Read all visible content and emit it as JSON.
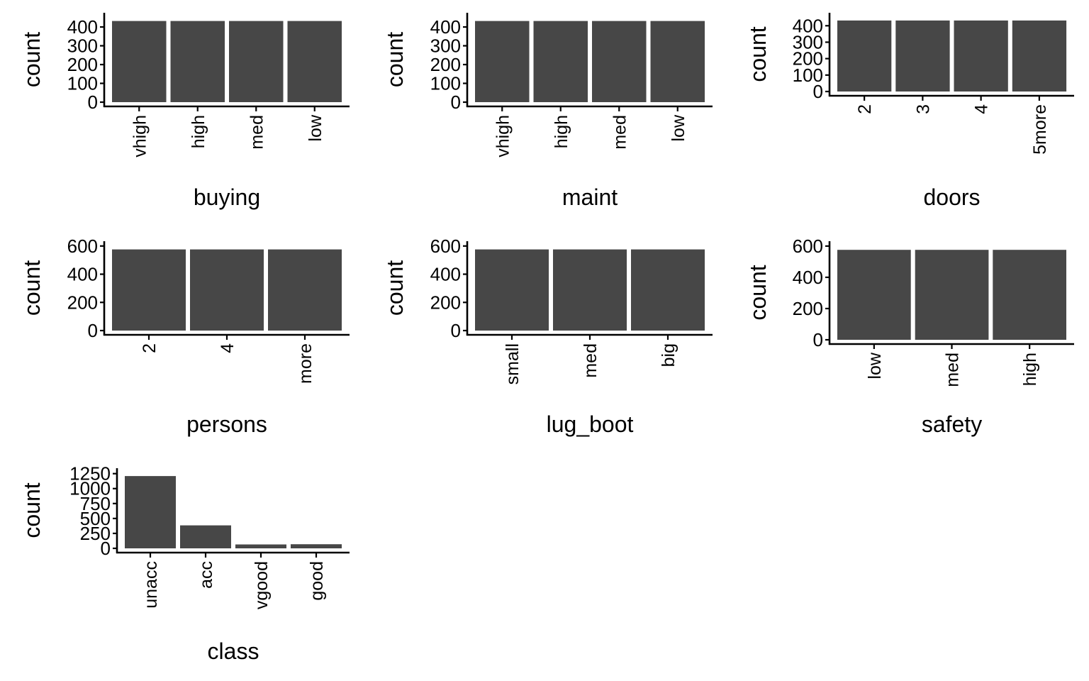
{
  "bar_color": "#474747",
  "ylabel": "count",
  "chart_data": [
    {
      "type": "bar",
      "xlabel": "buying",
      "ylabel": "count",
      "categories": [
        "vhigh",
        "high",
        "med",
        "low"
      ],
      "values": [
        432,
        432,
        432,
        432
      ],
      "yticks": [
        0,
        100,
        200,
        300,
        400
      ],
      "ylim": [
        0,
        453
      ]
    },
    {
      "type": "bar",
      "xlabel": "maint",
      "ylabel": "count",
      "categories": [
        "vhigh",
        "high",
        "med",
        "low"
      ],
      "values": [
        432,
        432,
        432,
        432
      ],
      "yticks": [
        0,
        100,
        200,
        300,
        400
      ],
      "ylim": [
        0,
        453
      ]
    },
    {
      "type": "bar",
      "xlabel": "doors",
      "ylabel": "count",
      "categories": [
        "2",
        "3",
        "4",
        "5more"
      ],
      "values": [
        432,
        432,
        432,
        432
      ],
      "yticks": [
        0,
        100,
        200,
        300,
        400
      ],
      "ylim": [
        0,
        453
      ]
    },
    {
      "type": "bar",
      "xlabel": "persons",
      "ylabel": "count",
      "categories": [
        "2",
        "4",
        "more"
      ],
      "values": [
        576,
        576,
        576
      ],
      "yticks": [
        0,
        200,
        400,
        600
      ],
      "ylim": [
        0,
        604
      ]
    },
    {
      "type": "bar",
      "xlabel": "lug_boot",
      "ylabel": "count",
      "categories": [
        "small",
        "med",
        "big"
      ],
      "values": [
        576,
        576,
        576
      ],
      "yticks": [
        0,
        200,
        400,
        600
      ],
      "ylim": [
        0,
        604
      ]
    },
    {
      "type": "bar",
      "xlabel": "safety",
      "ylabel": "count",
      "categories": [
        "low",
        "med",
        "high"
      ],
      "values": [
        576,
        576,
        576
      ],
      "yticks": [
        0,
        200,
        400,
        600
      ],
      "ylim": [
        0,
        604
      ]
    },
    {
      "type": "bar",
      "xlabel": "class",
      "ylabel": "count",
      "categories": [
        "unacc",
        "acc",
        "vgood",
        "good"
      ],
      "values": [
        1210,
        384,
        65,
        69
      ],
      "yticks": [
        0,
        250,
        500,
        750,
        1000,
        1250
      ],
      "ylim": [
        0,
        1270
      ]
    }
  ]
}
